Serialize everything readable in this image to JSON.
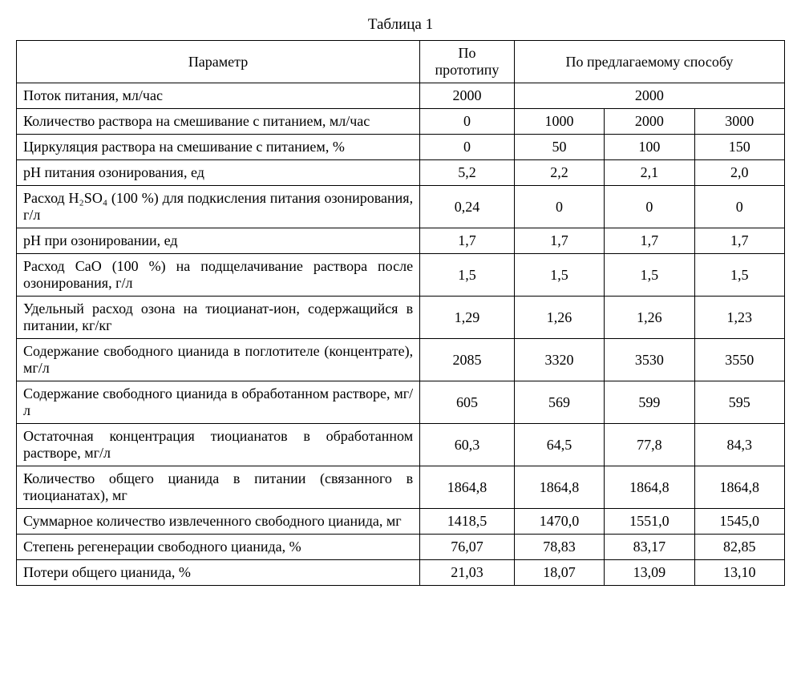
{
  "title": "Таблица 1",
  "headers": {
    "param": "Параметр",
    "prototype": "По прототипу",
    "proposed": "По предлагаемому способу"
  },
  "rows": [
    {
      "param": "Поток питания, мл/час",
      "proto": "2000",
      "val_merged": "2000",
      "merged": true
    },
    {
      "param": "Количество раствора на смешивание с питанием, мл/час",
      "proto": "0",
      "v1": "1000",
      "v2": "2000",
      "v3": "3000"
    },
    {
      "param": "Циркуляция раствора на смешивание с питанием, %",
      "proto": "0",
      "v1": "50",
      "v2": "100",
      "v3": "150"
    },
    {
      "param": "рН питания озонирования, ед",
      "proto": "5,2",
      "v1": "2,2",
      "v2": "2,1",
      "v3": "2,0"
    },
    {
      "param": "Расход H₂SO₄ (100 %) для подкисления питания озонирования, г/л",
      "proto": "0,24",
      "v1": "0",
      "v2": "0",
      "v3": "0"
    },
    {
      "param": "рН при озонировании, ед",
      "proto": "1,7",
      "v1": "1,7",
      "v2": "1,7",
      "v3": "1,7"
    },
    {
      "param": "Расход CaO (100 %) на подщелачивание раствора после озонирования, г/л",
      "proto": "1,5",
      "v1": "1,5",
      "v2": "1,5",
      "v3": "1,5"
    },
    {
      "param": "Удельный расход озона на тиоцианат-ион, содержащийся в питании, кг/кг",
      "proto": "1,29",
      "v1": "1,26",
      "v2": "1,26",
      "v3": "1,23"
    },
    {
      "param": "Содержание свободного цианида в поглотителе (концентрате), мг/л",
      "proto": "2085",
      "v1": "3320",
      "v2": "3530",
      "v3": "3550"
    },
    {
      "param": "Содержание свободного цианида в обработанном растворе, мг/л",
      "proto": "605",
      "v1": "569",
      "v2": "599",
      "v3": "595"
    },
    {
      "param": "Остаточная концентрация тиоцианатов в обработанном растворе, мг/л",
      "proto": "60,3",
      "v1": "64,5",
      "v2": "77,8",
      "v3": "84,3"
    },
    {
      "param": "Количество общего цианида в питании (связанного в тиоцианатах), мг",
      "proto": "1864,8",
      "v1": "1864,8",
      "v2": "1864,8",
      "v3": "1864,8"
    },
    {
      "param": "Суммарное количество извлеченного свободного цианида, мг",
      "proto": "1418,5",
      "v1": "1470,0",
      "v2": "1551,0",
      "v3": "1545,0"
    },
    {
      "param": "Степень регенерации свободного цианида, %",
      "proto": "76,07",
      "v1": "78,83",
      "v2": "83,17",
      "v3": "82,85"
    },
    {
      "param": "Потери общего цианида, %",
      "proto": "21,03",
      "v1": "18,07",
      "v2": "13,09",
      "v3": "13,10"
    }
  ],
  "styling": {
    "font_family": "Times New Roman",
    "font_size_pt": 14,
    "border_color": "#000000",
    "background_color": "#ffffff",
    "text_color": "#000000",
    "column_widths_pct": [
      47,
      11,
      10.5,
      10.5,
      10.5
    ]
  }
}
